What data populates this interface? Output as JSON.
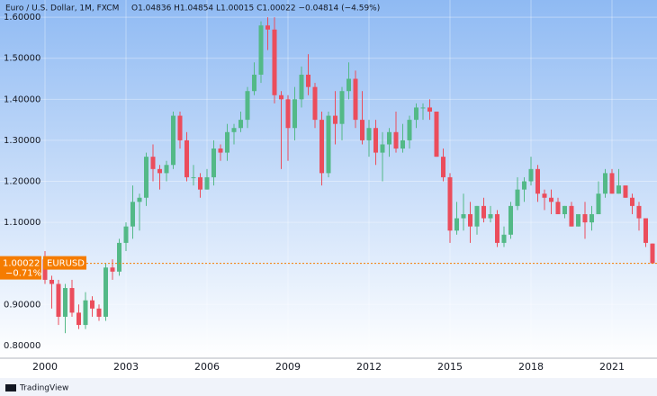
{
  "chart_data": {
    "type": "candlestick",
    "title": "Euro / U.S. Dollar, 1M, FXCM",
    "ohlc_text": "O1.04836 H1.04854 L1.00015 C1.00022 −0.04814 (−4.59%)",
    "symbol": "EURUSD",
    "change": "−0.71%",
    "brand": "TradingView",
    "last_price": 1.00022,
    "up_color": "#53b987",
    "down_color": "#eb4d5c",
    "price_line_color": "#f57c00",
    "grid": true,
    "xlim": [
      1998.333,
      2022.667
    ],
    "xticks": [
      2000,
      2003,
      2006,
      2009,
      2012,
      2015,
      2018,
      2021
    ],
    "ylim": [
      0.769,
      1.642
    ],
    "yticks": [
      {
        "value": 0.8,
        "label": "0.80000"
      },
      {
        "value": 0.9,
        "label": "0.90000"
      },
      {
        "value": 1.1,
        "label": "1.10000"
      },
      {
        "value": 1.2,
        "label": "1.20000"
      },
      {
        "value": 1.3,
        "label": "1.30000"
      },
      {
        "value": 1.4,
        "label": "1.40000"
      },
      {
        "value": 1.5,
        "label": "1.50000"
      },
      {
        "value": 1.6,
        "label": "1.60000"
      }
    ],
    "x": [
      2000,
      2000.25,
      2000.5,
      2000.75,
      2001,
      2001.25,
      2001.5,
      2001.75,
      2002,
      2002.25,
      2002.5,
      2002.75,
      2003,
      2003.25,
      2003.5,
      2003.75,
      2004,
      2004.25,
      2004.5,
      2004.75,
      2005,
      2005.25,
      2005.5,
      2005.75,
      2006,
      2006.25,
      2006.5,
      2006.75,
      2007,
      2007.25,
      2007.5,
      2007.75,
      2008,
      2008.25,
      2008.5,
      2008.75,
      2009,
      2009.25,
      2009.5,
      2009.75,
      2010,
      2010.25,
      2010.5,
      2010.75,
      2011,
      2011.25,
      2011.5,
      2011.75,
      2012,
      2012.25,
      2012.5,
      2012.75,
      2013,
      2013.25,
      2013.5,
      2013.75,
      2014,
      2014.25,
      2014.5,
      2014.75,
      2015,
      2015.25,
      2015.5,
      2015.75,
      2016,
      2016.25,
      2016.5,
      2016.75,
      2017,
      2017.25,
      2017.5,
      2017.75,
      2018,
      2018.25,
      2018.5,
      2018.75,
      2019,
      2019.25,
      2019.5,
      2019.75,
      2020,
      2020.25,
      2020.5,
      2020.75,
      2021,
      2021.25,
      2021.5,
      2021.75,
      2022,
      2022.25,
      2022.5
    ],
    "open": [
      1.01,
      0.96,
      0.95,
      0.87,
      0.94,
      0.88,
      0.85,
      0.91,
      0.89,
      0.87,
      0.99,
      0.98,
      1.05,
      1.09,
      1.15,
      1.16,
      1.26,
      1.23,
      1.22,
      1.24,
      1.36,
      1.3,
      1.21,
      1.21,
      1.18,
      1.21,
      1.28,
      1.27,
      1.32,
      1.33,
      1.35,
      1.42,
      1.46,
      1.58,
      1.57,
      1.41,
      1.4,
      1.33,
      1.4,
      1.46,
      1.43,
      1.35,
      1.22,
      1.36,
      1.34,
      1.42,
      1.45,
      1.35,
      1.3,
      1.33,
      1.27,
      1.29,
      1.32,
      1.28,
      1.3,
      1.35,
      1.38,
      1.38,
      1.37,
      1.26,
      1.21,
      1.08,
      1.11,
      1.12,
      1.09,
      1.14,
      1.11,
      1.12,
      1.05,
      1.07,
      1.14,
      1.18,
      1.2,
      1.23,
      1.17,
      1.16,
      1.15,
      1.12,
      1.14,
      1.09,
      1.12,
      1.1,
      1.12,
      1.17,
      1.22,
      1.17,
      1.19,
      1.16,
      1.14,
      1.11,
      1.04836
    ],
    "high": [
      1.03,
      0.97,
      0.96,
      0.95,
      0.96,
      0.9,
      0.93,
      0.92,
      0.9,
      1.0,
      1.01,
      1.06,
      1.1,
      1.19,
      1.17,
      1.27,
      1.29,
      1.24,
      1.25,
      1.37,
      1.37,
      1.32,
      1.24,
      1.22,
      1.23,
      1.3,
      1.29,
      1.34,
      1.34,
      1.37,
      1.43,
      1.49,
      1.59,
      1.6,
      1.6,
      1.42,
      1.41,
      1.43,
      1.48,
      1.51,
      1.44,
      1.37,
      1.37,
      1.42,
      1.43,
      1.49,
      1.47,
      1.42,
      1.35,
      1.35,
      1.32,
      1.33,
      1.37,
      1.34,
      1.36,
      1.39,
      1.39,
      1.4,
      1.37,
      1.28,
      1.22,
      1.15,
      1.17,
      1.15,
      1.14,
      1.16,
      1.14,
      1.13,
      1.09,
      1.15,
      1.21,
      1.21,
      1.26,
      1.24,
      1.18,
      1.18,
      1.16,
      1.14,
      1.15,
      1.12,
      1.15,
      1.14,
      1.2,
      1.23,
      1.23,
      1.23,
      1.19,
      1.17,
      1.15,
      1.11,
      1.04854
    ],
    "low": [
      0.95,
      0.89,
      0.85,
      0.83,
      0.87,
      0.84,
      0.84,
      0.87,
      0.86,
      0.86,
      0.96,
      0.97,
      1.03,
      1.06,
      1.08,
      1.14,
      1.2,
      1.18,
      1.2,
      1.23,
      1.28,
      1.2,
      1.19,
      1.16,
      1.18,
      1.19,
      1.25,
      1.25,
      1.29,
      1.32,
      1.33,
      1.41,
      1.44,
      1.52,
      1.39,
      1.23,
      1.25,
      1.3,
      1.38,
      1.41,
      1.33,
      1.19,
      1.21,
      1.29,
      1.3,
      1.4,
      1.33,
      1.29,
      1.26,
      1.24,
      1.2,
      1.26,
      1.27,
      1.27,
      1.28,
      1.33,
      1.35,
      1.35,
      1.26,
      1.2,
      1.05,
      1.07,
      1.08,
      1.05,
      1.07,
      1.1,
      1.1,
      1.04,
      1.04,
      1.06,
      1.13,
      1.15,
      1.19,
      1.15,
      1.13,
      1.12,
      1.12,
      1.11,
      1.09,
      1.09,
      1.06,
      1.08,
      1.12,
      1.16,
      1.17,
      1.17,
      1.16,
      1.12,
      1.08,
      1.04,
      1.00015
    ],
    "close": [
      0.96,
      0.95,
      0.87,
      0.94,
      0.88,
      0.85,
      0.91,
      0.89,
      0.87,
      0.99,
      0.98,
      1.05,
      1.09,
      1.15,
      1.16,
      1.26,
      1.23,
      1.22,
      1.24,
      1.36,
      1.3,
      1.21,
      1.21,
      1.18,
      1.21,
      1.28,
      1.27,
      1.32,
      1.33,
      1.35,
      1.42,
      1.46,
      1.58,
      1.57,
      1.41,
      1.4,
      1.33,
      1.4,
      1.46,
      1.43,
      1.35,
      1.22,
      1.36,
      1.34,
      1.42,
      1.45,
      1.35,
      1.3,
      1.33,
      1.27,
      1.29,
      1.32,
      1.28,
      1.3,
      1.35,
      1.38,
      1.38,
      1.37,
      1.26,
      1.21,
      1.08,
      1.11,
      1.12,
      1.09,
      1.14,
      1.11,
      1.12,
      1.05,
      1.07,
      1.14,
      1.18,
      1.2,
      1.23,
      1.17,
      1.16,
      1.15,
      1.12,
      1.14,
      1.09,
      1.12,
      1.1,
      1.12,
      1.17,
      1.22,
      1.17,
      1.19,
      1.16,
      1.14,
      1.11,
      1.05,
      1.00022
    ]
  }
}
